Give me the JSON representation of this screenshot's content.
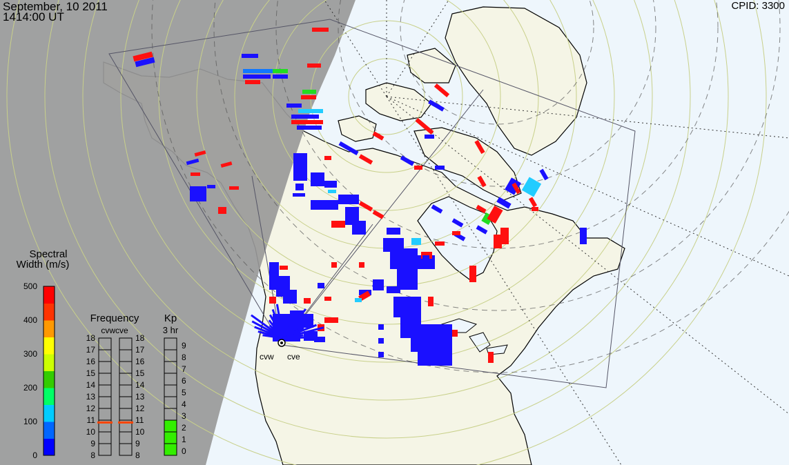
{
  "header": {
    "date": "September, 10 2011",
    "time": "1414:00 UT",
    "cpid": "CPID:  3300"
  },
  "radars": [
    {
      "name": "cvw"
    },
    {
      "name": "cve"
    }
  ],
  "legend": {
    "spectral_title_1": "Spectral",
    "spectral_title_2": "Width (m/s)",
    "colorbar_ticks": [
      "500",
      "400",
      "300",
      "200",
      "100",
      "0"
    ],
    "colorbar_colors": [
      "#0000ff",
      "#0066ff",
      "#00ccff",
      "#00ff66",
      "#33cc00",
      "#ccff00",
      "#ffff00",
      "#ff9900",
      "#ff3300",
      "#ff0000"
    ],
    "frequency_title": "Frequency",
    "frequency_sub": "cvwcve",
    "frequency_ticks": [
      "18",
      "17",
      "16",
      "15",
      "14",
      "13",
      "12",
      "11",
      "10",
      "9",
      "8"
    ],
    "frequency_values_mhz": [
      10.8,
      10.8
    ],
    "kp_title": "Kp",
    "kp_sub": "3 hr",
    "kp_ticks": [
      "9",
      "8",
      "7",
      "6",
      "5",
      "4",
      "3",
      "2",
      "1",
      "0"
    ],
    "kp_value": 3
  },
  "colors": {
    "night_shade": "#999999",
    "ocean": "#eef6fc",
    "land": "#f5f5e6",
    "grid_lat": "#c8d08a",
    "marker_freq": "#ff4400",
    "kp_fill": "#33ee00"
  }
}
